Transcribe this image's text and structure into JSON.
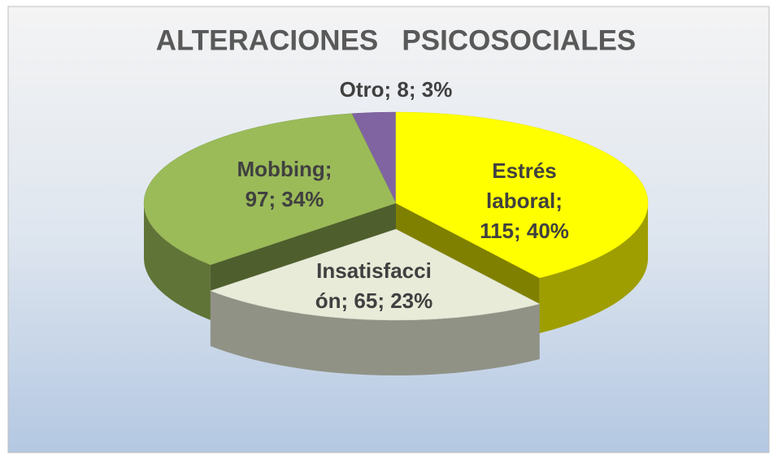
{
  "chart_data": {
    "type": "pie",
    "title": "ALTERACIONES   PSICOSOCIALES",
    "values": [
      115,
      65,
      97,
      8
    ],
    "value_labels": [
      [
        "Estrés",
        "laboral;",
        "115; 40%"
      ],
      [
        "Insatisfacci",
        "ón; 65; 23%"
      ],
      [
        "Mobbing;",
        "97; 34%"
      ],
      [
        "Otro; 8; 3%"
      ]
    ],
    "colors": [
      "#ffff00",
      "#e8ebd8",
      "#9bbb59",
      "#8064a2"
    ]
  }
}
